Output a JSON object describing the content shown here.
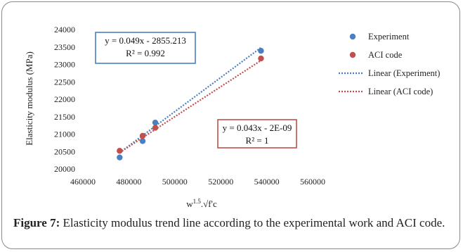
{
  "chart_data": {
    "type": "scatter",
    "title": "",
    "xlabel": "w1.5.√f'c",
    "xlabel_parts": {
      "base": "w",
      "exp": "1.5",
      "rest": ".√f'c"
    },
    "ylabel": "Elasticity modulus (MPa)",
    "xlim": [
      460000,
      560000
    ],
    "ylim": [
      20000,
      24000
    ],
    "xticks": [
      "460000",
      "480000",
      "500000",
      "520000",
      "540000",
      "560000"
    ],
    "xtick_values": [
      460000,
      480000,
      500000,
      520000,
      540000,
      560000
    ],
    "yticks": [
      "20000",
      "20500",
      "21000",
      "21500",
      "22000",
      "22500",
      "23000",
      "23500",
      "24000"
    ],
    "ytick_values": [
      20000,
      20500,
      21000,
      21500,
      22000,
      22500,
      23000,
      23500,
      24000
    ],
    "grid": false,
    "legend_position": "right",
    "series": [
      {
        "name": "Experiment",
        "color": "#4a7fc1",
        "points": [
          [
            476000,
            20330
          ],
          [
            486000,
            20800
          ],
          [
            491500,
            21330
          ],
          [
            537500,
            23390
          ]
        ]
      },
      {
        "name": "ACI code",
        "color": "#c0504d",
        "points": [
          [
            476000,
            20520
          ],
          [
            486000,
            20950
          ],
          [
            491500,
            21180
          ],
          [
            537500,
            23170
          ]
        ]
      }
    ],
    "trendlines": [
      {
        "name": "Linear (Experiment)",
        "color": "#4a7fc1",
        "slope": 0.049,
        "intercept": -2855.213,
        "x_range": [
          476000,
          537500
        ],
        "equation": "y = 0.049x - 2855.213",
        "r2": "R² = 0.992",
        "box_color": "#4a7fc1"
      },
      {
        "name": "Linear (ACI code)",
        "color": "#c0504d",
        "slope": 0.043,
        "intercept": 0,
        "x_range": [
          476000,
          537500
        ],
        "equation": "y = 0.043x - 2E-09",
        "r2": "R² = 1",
        "box_color": "#c0504d"
      }
    ]
  },
  "caption": {
    "label": "Figure 7:",
    "text": " Elasticity modulus trend line according to the experimental work and ACI code."
  }
}
